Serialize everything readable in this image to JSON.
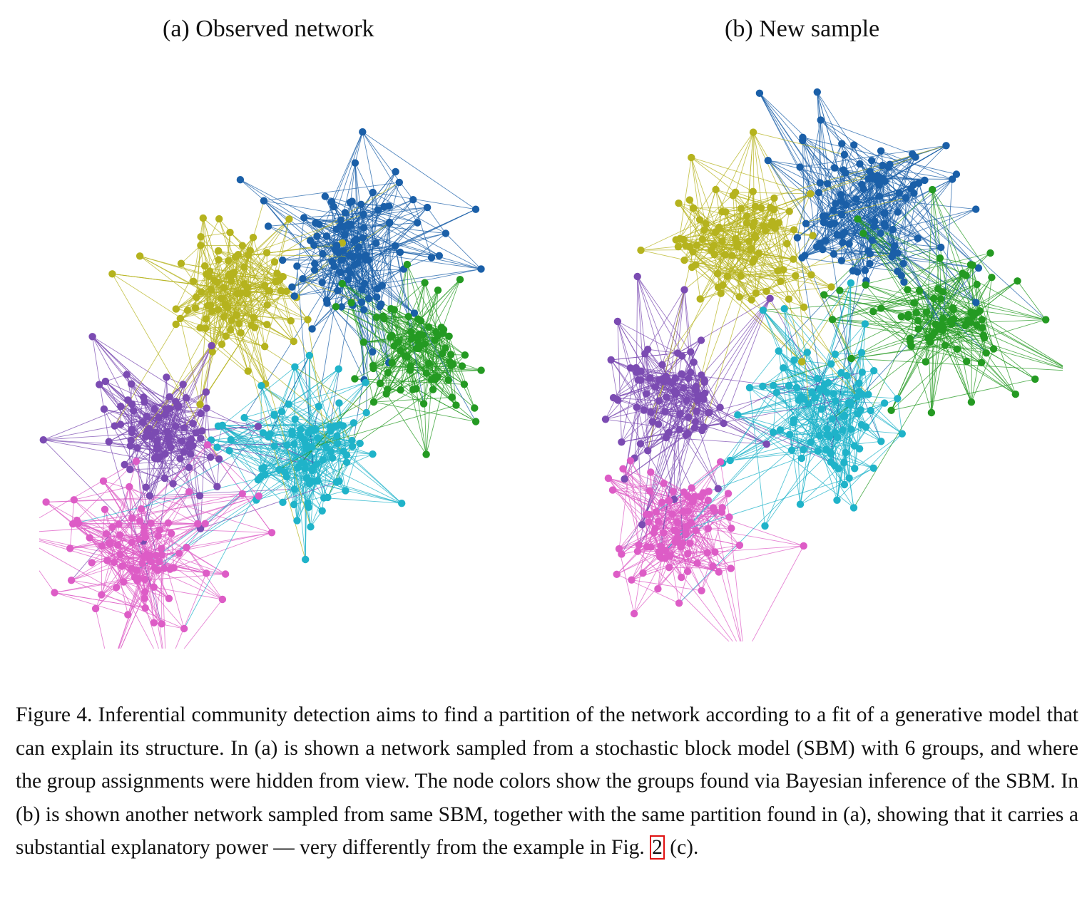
{
  "panels": {
    "a": {
      "title": "(a) Observed network"
    },
    "b": {
      "title": "(b) New sample"
    }
  },
  "groups": [
    {
      "id": "yellow",
      "color": "#b5b31e"
    },
    {
      "id": "blue",
      "color": "#1a5fa8"
    },
    {
      "id": "green",
      "color": "#249a22"
    },
    {
      "id": "purple",
      "color": "#7b4bb2"
    },
    {
      "id": "cyan",
      "color": "#1fb3c9"
    },
    {
      "id": "pink",
      "color": "#dd5cc6"
    }
  ],
  "caption": {
    "before_ref": "Figure 4.  Inferential community detection aims to find a partition of the network according to a fit of a generative model that can explain its structure. In (a) is shown a network sampled from a stochastic block model (SBM) with 6 groups, and where the group assignments were hidden from view. The node colors show the groups found via Bayesian inference of the SBM. In (b) is shown another network sampled from same SBM, together with the same partition found in (a), showing that it carries a substantial explanatory power — very differently from the example in Fig. ",
    "ref": "2",
    "after_ref": " (c)."
  }
}
